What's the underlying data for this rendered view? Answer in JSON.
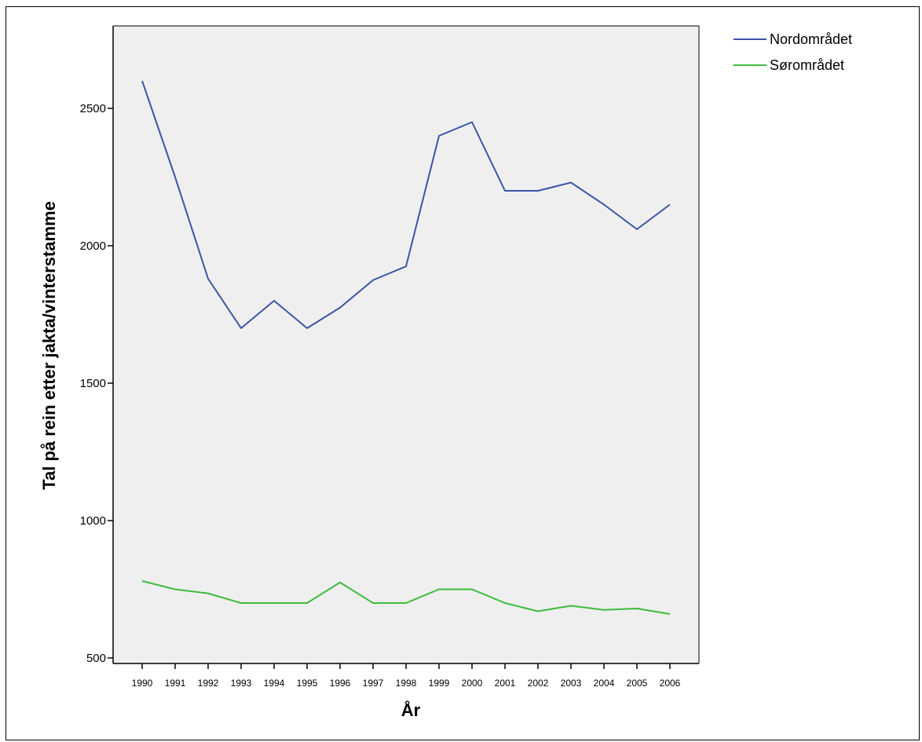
{
  "chart_data": {
    "type": "line",
    "title": "",
    "xlabel": "År",
    "ylabel": "Tal på rein etter jakta/vinterstamme",
    "ylim": [
      480,
      2800
    ],
    "yticks": [
      500,
      1000,
      1500,
      2000,
      2500
    ],
    "grid": false,
    "legend_position": "top-right",
    "plot_background": "#efefef",
    "categories": [
      "1990",
      "1991",
      "1992",
      "1993",
      "1994",
      "1995",
      "1996",
      "1997",
      "1998",
      "1999",
      "2000",
      "2001",
      "2002",
      "2003",
      "2004",
      "2005",
      "2006"
    ],
    "series": [
      {
        "name": "Nordområdet",
        "color": "#3b54a8",
        "values": [
          2600,
          2250,
          1880,
          1700,
          1800,
          1700,
          1775,
          1875,
          1925,
          2400,
          2450,
          2200,
          2200,
          2230,
          2150,
          2060,
          2150
        ]
      },
      {
        "name": "Sørområdet",
        "color": "#3dbb3d",
        "values": [
          780,
          750,
          735,
          700,
          700,
          700,
          775,
          700,
          700,
          750,
          750,
          700,
          670,
          690,
          675,
          680,
          660
        ]
      }
    ]
  }
}
